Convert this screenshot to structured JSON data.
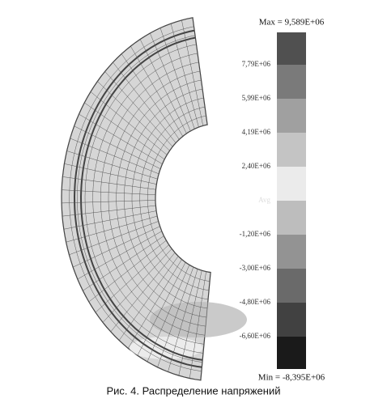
{
  "legend": {
    "max_label": "Max = 9,589E+06",
    "labels": [
      "7,79E+06",
      "5,99E+06",
      "4,19E+06",
      "2,40E+06",
      "Avg",
      "-1,20E+06",
      "-3,00E+06",
      "-4,80E+06",
      "-6,60E+06"
    ],
    "min_label": "Min = -8,395E+06"
  },
  "caption": "Рис. 4. Распределение напряжений"
}
